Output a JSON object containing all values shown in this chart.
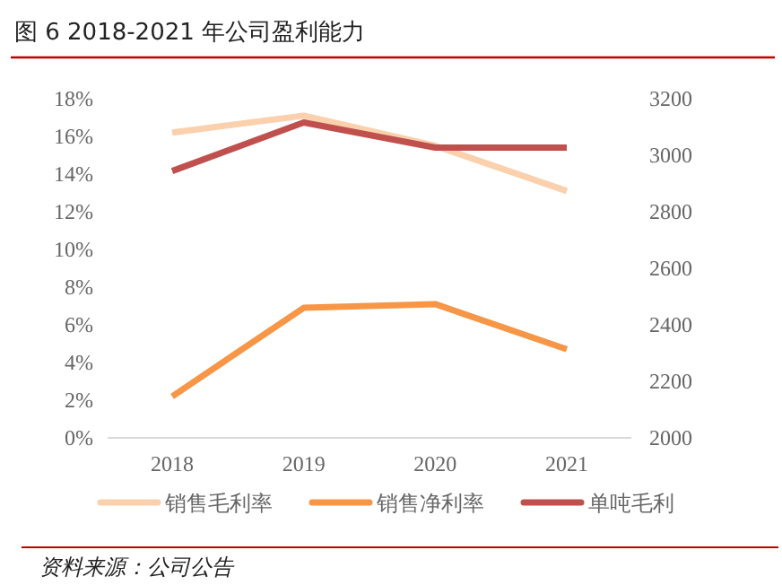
{
  "chart_data": {
    "type": "line",
    "title": "图 6 2018-2021 年公司盈利能力",
    "categories": [
      "2018",
      "2019",
      "2020",
      "2021"
    ],
    "series": [
      {
        "name": "销售毛利率",
        "color": "#fbd0ad",
        "values": [
          16.2,
          17.1,
          15.5,
          13.1
        ]
      },
      {
        "name": "销售净利率",
        "color": "#f79646",
        "values": [
          2.2,
          6.9,
          7.1,
          4.7
        ]
      },
      {
        "name": "单吨毛利",
        "color": "#c0504d",
        "axis": "y2",
        "values": [
          2944,
          3116,
          3027,
          3027
        ]
      }
    ],
    "ylim": [
      0,
      18
    ],
    "yticks": [
      {
        "value": 0,
        "label": "0%"
      },
      {
        "value": 2,
        "label": "2%"
      },
      {
        "value": 4,
        "label": "4%"
      },
      {
        "value": 6,
        "label": "6%"
      },
      {
        "value": 8,
        "label": "8%"
      },
      {
        "value": 10,
        "label": "10%"
      },
      {
        "value": 12,
        "label": "12%"
      },
      {
        "value": 14,
        "label": "14%"
      },
      {
        "value": 16,
        "label": "16%"
      },
      {
        "value": 18,
        "label": "18%"
      }
    ],
    "y2lim": [
      2000,
      3200
    ],
    "y2ticks": [
      2000,
      2200,
      2400,
      2600,
      2800,
      3000,
      3200
    ],
    "legend": "bottom",
    "grid": false,
    "annotations": [
      "资料来源：公司公告"
    ]
  }
}
